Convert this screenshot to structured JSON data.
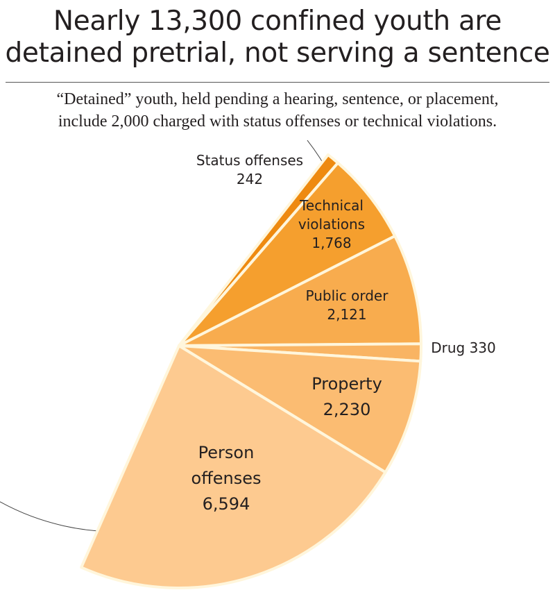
{
  "title_lines": [
    "Nearly 13,300 confined youth are",
    "detained pretrial, not serving a sentence"
  ],
  "subtitle_lines": [
    "“Detained” youth, held pending a hearing, sentence, or placement,",
    "include 2,000 charged with status offenses or technical violations."
  ],
  "chart_data": {
    "type": "pie",
    "title": "Nearly 13,300 confined youth are detained pretrial, not serving a sentence",
    "slices": [
      {
        "label": "Status offenses",
        "value": 242,
        "value_label": "242",
        "color": "#ee8a10"
      },
      {
        "label": "Technical violations",
        "value": 1768,
        "value_label": "1,768",
        "color": "#f59f2e"
      },
      {
        "label": "Public order",
        "value": 2121,
        "value_label": "2,121",
        "color": "#f8ac4e"
      },
      {
        "label": "Drug",
        "value": 330,
        "value_label": "330",
        "color": "#f9b463"
      },
      {
        "label": "Property",
        "value": 2230,
        "value_label": "2,230",
        "color": "#fbbc72"
      },
      {
        "label": "Person offenses",
        "value": 6594,
        "value_label": "6,594",
        "color": "#fdca90"
      }
    ],
    "separator_color": "#fff6dc",
    "partial_pie": true,
    "legend": "none"
  }
}
